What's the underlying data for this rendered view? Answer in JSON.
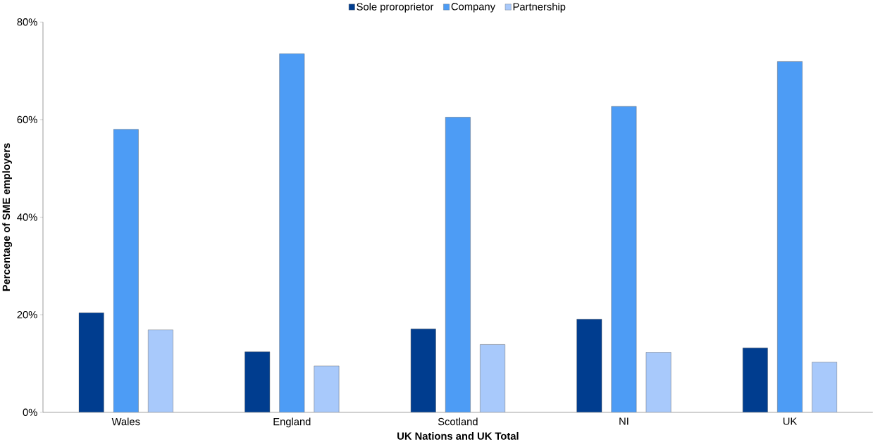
{
  "chart_data": {
    "type": "bar",
    "xlabel": "UK Nations and UK Total",
    "ylabel": "Percentage of SME employers",
    "categories": [
      "Wales",
      "England",
      "Scotland",
      "NI",
      "UK"
    ],
    "series": [
      {
        "name": "Sole proroprietor",
        "color": "#003d8f",
        "values": [
          20.4,
          12.4,
          17.1,
          19.1,
          13.2
        ]
      },
      {
        "name": "Company",
        "color": "#4d9cf5",
        "values": [
          58.0,
          73.5,
          60.5,
          62.7,
          71.9
        ]
      },
      {
        "name": "Partnership",
        "color": "#a8c9fb",
        "values": [
          16.9,
          9.5,
          13.9,
          12.3,
          10.3
        ]
      }
    ],
    "ylim": [
      0,
      80
    ],
    "yticks": [
      {
        "value": 0,
        "label": "0%"
      },
      {
        "value": 20,
        "label": "20%"
      },
      {
        "value": 40,
        "label": "40%"
      },
      {
        "value": 60,
        "label": "60%"
      },
      {
        "value": 80,
        "label": "80%"
      }
    ],
    "grid": false,
    "legend": "top"
  }
}
